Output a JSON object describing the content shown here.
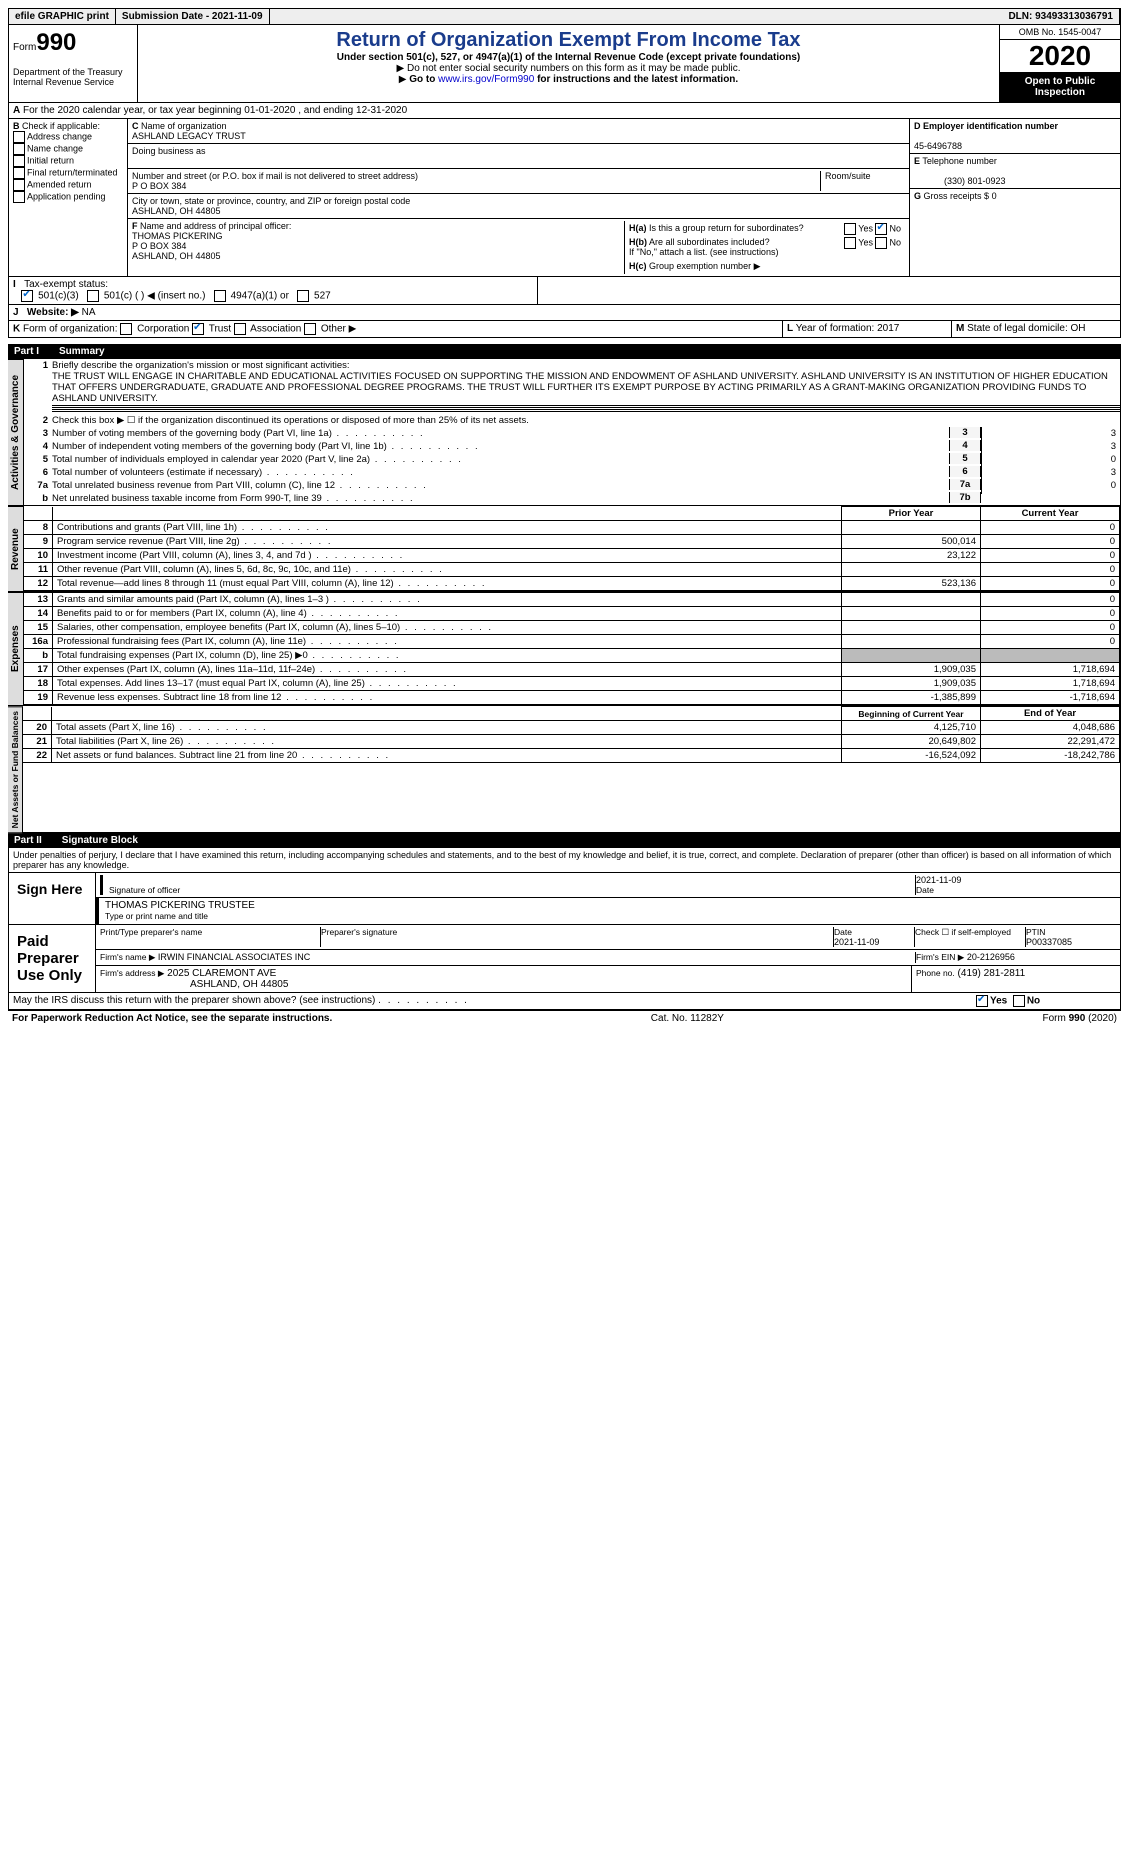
{
  "topbar": {
    "efile": "efile GRAPHIC print",
    "submission": "Submission Date - 2021-11-09",
    "dln_label": "DLN:",
    "dln": "93493313036791"
  },
  "header": {
    "form_prefix": "Form",
    "form_num": "990",
    "dept": "Department of the Treasury\nInternal Revenue Service",
    "title": "Return of Organization Exempt From Income Tax",
    "subtitle": "Under section 501(c), 527, or 4947(a)(1) of the Internal Revenue Code (except private foundations)",
    "note1": "Do not enter social security numbers on this form as it may be made public.",
    "note2_pre": "Go to ",
    "note2_link": "www.irs.gov/Form990",
    "note2_post": " for instructions and the latest information.",
    "omb": "OMB No. 1545-0047",
    "year": "2020",
    "open": "Open to Public Inspection"
  },
  "lineA": "For the 2020 calendar year, or tax year beginning 01-01-2020   , and ending 12-31-2020",
  "B": {
    "label": "Check if applicable:",
    "opts": [
      "Address change",
      "Name change",
      "Initial return",
      "Final return/terminated",
      "Amended return",
      "Application pending"
    ]
  },
  "C": {
    "label": "Name of organization",
    "name": "ASHLAND LEGACY TRUST",
    "dba_label": "Doing business as",
    "addr_label": "Number and street (or P.O. box if mail is not delivered to street address)",
    "addr": "P O BOX 384",
    "suite_label": "Room/suite",
    "city_label": "City or town, state or province, country, and ZIP or foreign postal code",
    "city": "ASHLAND, OH  44805"
  },
  "D": {
    "label": "Employer identification number",
    "val": "45-6496788"
  },
  "E": {
    "label": "Telephone number",
    "val": "(330) 801-0923"
  },
  "G": {
    "label": "Gross receipts $",
    "val": "0"
  },
  "F": {
    "label": "Name and address of principal officer:",
    "name": "THOMAS PICKERING",
    "addr1": "P O BOX 384",
    "addr2": "ASHLAND, OH  44805"
  },
  "H": {
    "a": "Is this a group return for subordinates?",
    "b": "Are all subordinates included?",
    "b_note": "If \"No,\" attach a list. (see instructions)",
    "c": "Group exemption number ▶",
    "yes": "Yes",
    "no": "No"
  },
  "I": {
    "label": "Tax-exempt status:",
    "opts": [
      "501(c)(3)",
      "501(c) (  ) ◀ (insert no.)",
      "4947(a)(1) or",
      "527"
    ]
  },
  "J": {
    "label": "Website: ▶",
    "val": "NA"
  },
  "K": {
    "label": "Form of organization:",
    "opts": [
      "Corporation",
      "Trust",
      "Association",
      "Other ▶"
    ]
  },
  "L": {
    "label": "Year of formation:",
    "val": "2017"
  },
  "M": {
    "label": "State of legal domicile:",
    "val": "OH"
  },
  "partI": {
    "num": "Part I",
    "title": "Summary",
    "q1_label": "Briefly describe the organization's mission or most significant activities:",
    "q1": "THE TRUST WILL ENGAGE IN CHARITABLE AND EDUCATIONAL ACTIVITIES FOCUSED ON SUPPORTING THE MISSION AND ENDOWMENT OF ASHLAND UNIVERSITY. ASHLAND UNIVERSITY IS AN INSTITUTION OF HIGHER EDUCATION THAT OFFERS UNDERGRADUATE, GRADUATE AND PROFESSIONAL DEGREE PROGRAMS. THE TRUST WILL FURTHER ITS EXEMPT PURPOSE BY ACTING PRIMARILY AS A GRANT-MAKING ORGANIZATION PROVIDING FUNDS TO ASHLAND UNIVERSITY.",
    "q2": "Check this box ▶ ☐  if the organization discontinued its operations or disposed of more than 25% of its net assets.",
    "tabs": {
      "ag": "Activities & Governance",
      "rev": "Revenue",
      "exp": "Expenses",
      "net": "Net Assets or Fund Balances"
    },
    "lines_ag": [
      {
        "n": "3",
        "t": "Number of voting members of the governing body (Part VI, line 1a)",
        "id": "3",
        "v": "3"
      },
      {
        "n": "4",
        "t": "Number of independent voting members of the governing body (Part VI, line 1b)",
        "id": "4",
        "v": "3"
      },
      {
        "n": "5",
        "t": "Total number of individuals employed in calendar year 2020 (Part V, line 2a)",
        "id": "5",
        "v": "0"
      },
      {
        "n": "6",
        "t": "Total number of volunteers (estimate if necessary)",
        "id": "6",
        "v": "3"
      },
      {
        "n": "7a",
        "t": "Total unrelated business revenue from Part VIII, column (C), line 12",
        "id": "7a",
        "v": "0"
      },
      {
        "n": "b",
        "t": "Net unrelated business taxable income from Form 990-T, line 39",
        "id": "7b",
        "v": ""
      }
    ],
    "col_headers": {
      "prior": "Prior Year",
      "current": "Current Year",
      "boy": "Beginning of Current Year",
      "eoy": "End of Year"
    },
    "lines_rev": [
      {
        "n": "8",
        "t": "Contributions and grants (Part VIII, line 1h)",
        "p": "",
        "c": "0"
      },
      {
        "n": "9",
        "t": "Program service revenue (Part VIII, line 2g)",
        "p": "500,014",
        "c": "0"
      },
      {
        "n": "10",
        "t": "Investment income (Part VIII, column (A), lines 3, 4, and 7d )",
        "p": "23,122",
        "c": "0"
      },
      {
        "n": "11",
        "t": "Other revenue (Part VIII, column (A), lines 5, 6d, 8c, 9c, 10c, and 11e)",
        "p": "",
        "c": "0"
      },
      {
        "n": "12",
        "t": "Total revenue—add lines 8 through 11 (must equal Part VIII, column (A), line 12)",
        "p": "523,136",
        "c": "0"
      }
    ],
    "lines_exp": [
      {
        "n": "13",
        "t": "Grants and similar amounts paid (Part IX, column (A), lines 1–3 )",
        "p": "",
        "c": "0"
      },
      {
        "n": "14",
        "t": "Benefits paid to or for members (Part IX, column (A), line 4)",
        "p": "",
        "c": "0"
      },
      {
        "n": "15",
        "t": "Salaries, other compensation, employee benefits (Part IX, column (A), lines 5–10)",
        "p": "",
        "c": "0"
      },
      {
        "n": "16a",
        "t": "Professional fundraising fees (Part IX, column (A), line 11e)",
        "p": "",
        "c": "0"
      },
      {
        "n": "b",
        "t": "Total fundraising expenses (Part IX, column (D), line 25) ▶0",
        "p": "GREY",
        "c": "GREY"
      },
      {
        "n": "17",
        "t": "Other expenses (Part IX, column (A), lines 11a–11d, 11f–24e)",
        "p": "1,909,035",
        "c": "1,718,694"
      },
      {
        "n": "18",
        "t": "Total expenses. Add lines 13–17 (must equal Part IX, column (A), line 25)",
        "p": "1,909,035",
        "c": "1,718,694"
      },
      {
        "n": "19",
        "t": "Revenue less expenses. Subtract line 18 from line 12",
        "p": "-1,385,899",
        "c": "-1,718,694"
      }
    ],
    "lines_net": [
      {
        "n": "20",
        "t": "Total assets (Part X, line 16)",
        "p": "4,125,710",
        "c": "4,048,686"
      },
      {
        "n": "21",
        "t": "Total liabilities (Part X, line 26)",
        "p": "20,649,802",
        "c": "22,291,472"
      },
      {
        "n": "22",
        "t": "Net assets or fund balances. Subtract line 21 from line 20",
        "p": "-16,524,092",
        "c": "-18,242,786"
      }
    ]
  },
  "partII": {
    "num": "Part II",
    "title": "Signature Block",
    "declaration": "Under penalties of perjury, I declare that I have examined this return, including accompanying schedules and statements, and to the best of my knowledge and belief, it is true, correct, and complete. Declaration of preparer (other than officer) is based on all information of which preparer has any knowledge.",
    "sign_here": "Sign Here",
    "sig_officer_label": "Signature of officer",
    "sig_date": "2021-11-09",
    "date_label": "Date",
    "officer_name": "THOMAS PICKERING TRUSTEE",
    "officer_name_label": "Type or print name and title",
    "paid": "Paid Preparer Use Only",
    "prep_name_label": "Print/Type preparer's name",
    "prep_sig_label": "Preparer's signature",
    "prep_date": "2021-11-09",
    "check_self": "Check ☐ if self-employed",
    "ptin_label": "PTIN",
    "ptin": "P00337085",
    "firm_name_label": "Firm's name    ▶",
    "firm_name": "IRWIN FINANCIAL ASSOCIATES INC",
    "firm_ein_label": "Firm's EIN ▶",
    "firm_ein": "20-2126956",
    "firm_addr_label": "Firm's address ▶",
    "firm_addr1": "2025 CLAREMONT AVE",
    "firm_addr2": "ASHLAND, OH  44805",
    "phone_label": "Phone no.",
    "phone": "(419) 281-2811",
    "may_irs": "May the IRS discuss this return with the preparer shown above? (see instructions)"
  },
  "footer": {
    "pra": "For Paperwork Reduction Act Notice, see the separate instructions.",
    "cat": "Cat. No. 11282Y",
    "form": "Form 990 (2020)"
  }
}
